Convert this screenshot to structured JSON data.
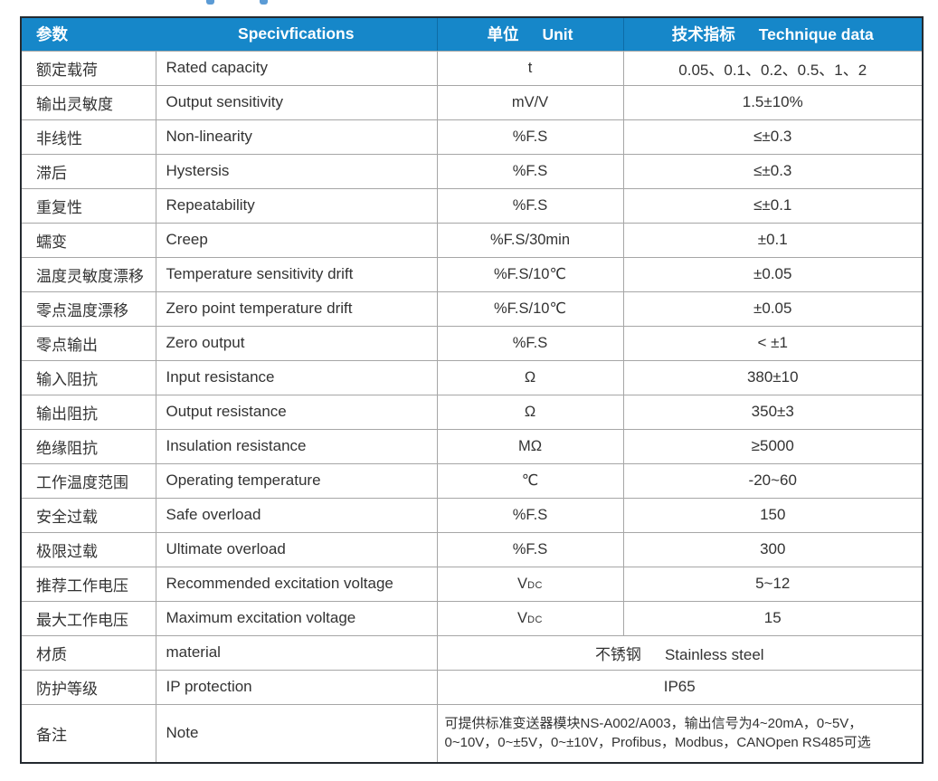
{
  "decorations": {
    "cropped_heading_fragments": 2,
    "fragment_color": "#5b9bd5"
  },
  "colors": {
    "header_bg": "#1687c9",
    "header_text": "#ffffff",
    "header_divider": "#0e6ca6",
    "outer_border": "#242a30",
    "grid_line": "#a6a6a6",
    "body_text": "#333333",
    "page_bg": "#ffffff"
  },
  "table": {
    "header": {
      "param": "参数",
      "specifications": "Specivfications",
      "unit_zh": "单位",
      "unit_en": "Unit",
      "tech_zh": "技术指标",
      "tech_en": "Technique data"
    },
    "rows": [
      {
        "param_zh": "额定载荷",
        "param_en": "Rated capacity",
        "unit": "t",
        "value": "0.05、0.1、0.2、0.5、1、2"
      },
      {
        "param_zh": "输出灵敏度",
        "param_en": "Output sensitivity",
        "unit": "mV/V",
        "value": "1.5±10%"
      },
      {
        "param_zh": "非线性",
        "param_en": "Non-linearity",
        "unit": "%F.S",
        "value": "≤±0.3"
      },
      {
        "param_zh": "滞后",
        "param_en": "Hystersis",
        "unit": "%F.S",
        "value": "≤±0.3"
      },
      {
        "param_zh": "重复性",
        "param_en": "Repeatability",
        "unit": "%F.S",
        "value": "≤±0.1"
      },
      {
        "param_zh": "蠕变",
        "param_en": "Creep",
        "unit": "%F.S/30min",
        "value": "±0.1"
      },
      {
        "param_zh": "温度灵敏度漂移",
        "param_en": "Temperature sensitivity drift",
        "unit": "%F.S/10℃",
        "value": "±0.05"
      },
      {
        "param_zh": "零点温度漂移",
        "param_en": "Zero point temperature drift",
        "unit": "%F.S/10℃",
        "value": "±0.05"
      },
      {
        "param_zh": "零点输出",
        "param_en": "Zero output",
        "unit": "%F.S",
        "value": "< ±1"
      },
      {
        "param_zh": "输入阻抗",
        "param_en": "Input resistance",
        "unit": "Ω",
        "value": "380±10"
      },
      {
        "param_zh": "输出阻抗",
        "param_en": "Output resistance",
        "unit": "Ω",
        "value": "350±3"
      },
      {
        "param_zh": "绝缘阻抗",
        "param_en": "Insulation resistance",
        "unit": "MΩ",
        "value": "≥5000"
      },
      {
        "param_zh": "工作温度范围",
        "param_en": "Operating temperature",
        "unit": "℃",
        "value": "-20~60"
      },
      {
        "param_zh": "安全过载",
        "param_en": "Safe overload",
        "unit": "%F.S",
        "value": "150"
      },
      {
        "param_zh": "极限过载",
        "param_en": "Ultimate overload",
        "unit": "%F.S",
        "value": "300"
      },
      {
        "param_zh": "推荐工作电压",
        "param_en": "Recommended excitation voltage",
        "unit_main": "V",
        "unit_sub": "DC",
        "value": "5~12"
      },
      {
        "param_zh": "最大工作电压",
        "param_en": "Maximum excitation voltage",
        "unit_main": "V",
        "unit_sub": "DC",
        "value": "15"
      }
    ],
    "material_row": {
      "param_zh": "材质",
      "param_en": "material",
      "value_zh": "不锈钢",
      "value_en": "Stainless steel"
    },
    "ip_row": {
      "param_zh": "防护等级",
      "param_en": "IP protection",
      "value": "IP65"
    },
    "note_row": {
      "param_zh": "备注",
      "param_en": "Note",
      "line1": "可提供标准变送器模块NS-A002/A003，输出信号为4~20mA，0~5V，",
      "line2": "0~10V，0~±5V，0~±10V，Profibus，Modbus，CANOpen RS485可选"
    }
  }
}
